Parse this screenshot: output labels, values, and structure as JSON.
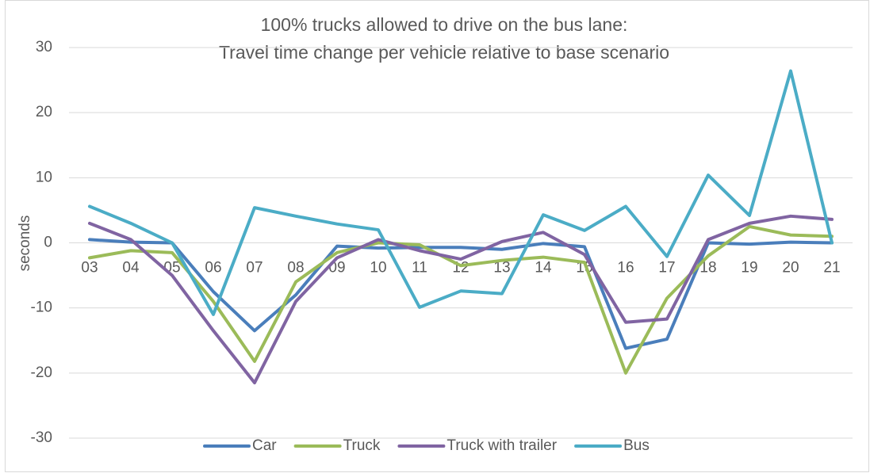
{
  "chart_data": {
    "type": "line",
    "title": [
      "100% trucks allowed to drive on the bus lane:",
      "Travel time change per vehicle relative to base scenario"
    ],
    "y_label": "seconds",
    "categories": [
      "03",
      "04",
      "05",
      "06",
      "07",
      "08",
      "09",
      "10",
      "11",
      "12",
      "13",
      "14",
      "15",
      "16",
      "17",
      "18",
      "19",
      "20",
      "21"
    ],
    "series": [
      {
        "name": "Car",
        "color": "#4a7ebb",
        "values": [
          0.5,
          0.1,
          0,
          -7.5,
          -13.5,
          -8,
          -0.5,
          -0.8,
          -0.7,
          -0.7,
          -1,
          -0.1,
          -0.6,
          -16.2,
          -14.8,
          0,
          -0.2,
          0.1,
          0
        ]
      },
      {
        "name": "Truck",
        "color": "#9bbb59",
        "values": [
          -2.3,
          -1.2,
          -1.5,
          -9,
          -18.2,
          -6,
          -1.5,
          0,
          -0.3,
          -3.5,
          -2.7,
          -2.2,
          -3,
          -20,
          -8.5,
          -2,
          2.5,
          1.2,
          1
        ]
      },
      {
        "name": "Truck with trailer",
        "color": "#8064a2",
        "values": [
          3,
          0.5,
          -5,
          -13.5,
          -21.5,
          -9,
          -2.3,
          0.5,
          -1.2,
          -2.5,
          0.2,
          1.6,
          -1.8,
          -12.2,
          -11.7,
          0.5,
          3,
          4.1,
          3.6
        ]
      },
      {
        "name": "Bus",
        "color": "#4bacc6",
        "values": [
          5.6,
          3,
          0,
          -11,
          5.4,
          4.1,
          2.9,
          2,
          -9.9,
          -7.4,
          -7.8,
          4.3,
          1.9,
          5.6,
          -2.1,
          10.4,
          4.2,
          26.4,
          0
        ]
      }
    ],
    "ylim": [
      -30,
      30
    ],
    "yticks": [
      -30,
      -20,
      -10,
      0,
      10,
      20,
      30
    ],
    "grid": true,
    "legend": "bottom"
  }
}
